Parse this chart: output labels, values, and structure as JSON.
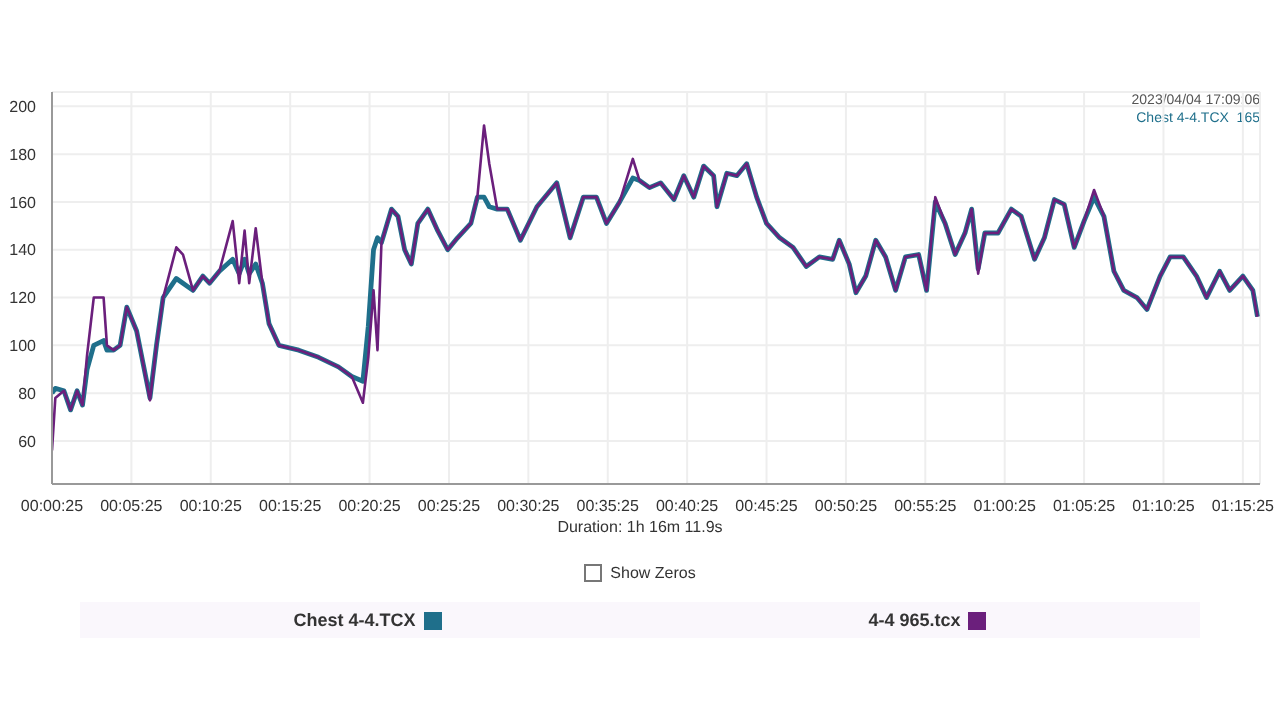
{
  "chart_data": {
    "type": "line",
    "xlabel": "Duration: 1h 16m 11.9s",
    "annotations": [
      "2023/04/04 17:09:06",
      "Chest 4-4.TCX  165",
      "Show Zeros"
    ],
    "x": [
      0.42,
      0.63,
      1.17,
      1.59,
      2.0,
      2.34,
      2.63,
      3.05,
      3.67,
      3.88,
      4.3,
      4.71,
      5.13,
      5.75,
      6.17,
      6.59,
      7.0,
      7.42,
      8.25,
      8.67,
      9.3,
      9.92,
      10.34,
      10.96,
      11.8,
      12.21,
      12.55,
      12.84,
      13.25,
      13.67,
      14.09,
      14.71,
      15.96,
      17.21,
      18.46,
      19.3,
      20.0,
      20.34,
      20.67,
      20.92,
      21.17,
      21.8,
      22.21,
      22.63,
      23.05,
      23.46,
      24.09,
      24.71,
      25.34,
      25.96,
      26.8,
      27.21,
      27.63,
      27.96,
      28.46,
      29.09,
      29.92,
      30.96,
      32.21,
      33.05,
      33.88,
      34.71,
      35.34,
      36.17,
      37.0,
      37.42,
      38.05,
      38.75,
      39.59,
      40.21,
      40.84,
      41.46,
      42.09,
      42.3,
      42.92,
      43.55,
      44.17,
      44.8,
      45.42,
      46.25,
      47.09,
      47.92,
      48.75,
      49.59,
      50.0,
      50.63,
      51.05,
      51.67,
      52.3,
      52.92,
      53.55,
      54.17,
      55.0,
      55.5,
      56.05,
      56.67,
      57.3,
      57.92,
      58.34,
      58.75,
      59.17,
      60.0,
      60.84,
      61.46,
      62.3,
      62.92,
      63.55,
      64.17,
      64.8,
      65.42,
      66.05,
      66.67,
      67.3,
      67.92,
      68.75,
      69.38,
      70.21,
      70.84,
      71.67,
      72.5,
      73.13,
      73.96,
      74.59,
      75.42,
      76.05,
      76.34
    ],
    "series": [
      {
        "name": "Chest 4-4.TCX",
        "color": "#1f6f8b",
        "values": [
          80,
          82,
          81,
          73,
          81,
          75,
          90,
          100,
          102,
          98,
          98,
          100,
          116,
          106,
          92,
          78,
          100,
          120,
          128,
          126,
          123,
          129,
          126,
          131,
          136,
          130,
          136,
          130,
          134,
          126,
          109,
          100,
          98,
          95,
          91,
          87,
          85,
          108,
          140,
          145,
          143,
          157,
          154,
          140,
          134,
          151,
          157,
          148,
          140,
          145,
          151,
          162,
          162,
          158,
          157,
          157,
          144,
          158,
          168,
          145,
          162,
          162,
          151,
          160,
          170,
          169,
          166,
          168,
          161,
          171,
          162,
          175,
          171,
          158,
          172,
          171,
          176,
          162,
          151,
          145,
          141,
          133,
          137,
          136,
          144,
          134,
          122,
          129,
          144,
          137,
          123,
          137,
          138,
          123,
          160,
          151,
          138,
          147,
          157,
          132,
          147,
          147,
          157,
          154,
          136,
          145,
          161,
          159,
          141,
          152,
          162,
          154,
          131,
          123,
          120,
          115,
          129,
          137,
          137,
          129,
          120,
          131,
          123,
          129,
          123,
          112
        ]
      },
      {
        "name": "4-4 965.tcx",
        "color": "#6b1f7c",
        "values": [
          56,
          78,
          81,
          73,
          81,
          75,
          96,
          120,
          120,
          100,
          98,
          100,
          116,
          106,
          92,
          77,
          100,
          120,
          141,
          138,
          123,
          129,
          126,
          131,
          152,
          126,
          148,
          126,
          149,
          126,
          109,
          100,
          98,
          95,
          91,
          87,
          76,
          95,
          123,
          98,
          143,
          157,
          154,
          140,
          134,
          151,
          157,
          148,
          140,
          145,
          151,
          162,
          192,
          176,
          157,
          157,
          144,
          158,
          168,
          145,
          162,
          162,
          151,
          160,
          178,
          169,
          166,
          168,
          161,
          171,
          162,
          175,
          171,
          158,
          172,
          171,
          176,
          162,
          151,
          145,
          141,
          133,
          137,
          136,
          144,
          134,
          122,
          129,
          144,
          137,
          123,
          137,
          138,
          123,
          162,
          151,
          138,
          147,
          157,
          130,
          147,
          147,
          157,
          154,
          136,
          145,
          161,
          159,
          141,
          152,
          165,
          154,
          131,
          123,
          120,
          115,
          129,
          137,
          137,
          129,
          120,
          131,
          123,
          129,
          123,
          112
        ]
      }
    ],
    "xlim": [
      0.42,
      76.5
    ],
    "xticks": [
      {
        "value": 0.42,
        "label": "00:00:25"
      },
      {
        "value": 5.42,
        "label": "00:05:25"
      },
      {
        "value": 10.42,
        "label": "00:10:25"
      },
      {
        "value": 15.42,
        "label": "00:15:25"
      },
      {
        "value": 20.42,
        "label": "00:20:25"
      },
      {
        "value": 25.42,
        "label": "00:25:25"
      },
      {
        "value": 30.42,
        "label": "00:30:25"
      },
      {
        "value": 35.42,
        "label": "00:35:25"
      },
      {
        "value": 40.42,
        "label": "00:40:25"
      },
      {
        "value": 45.42,
        "label": "00:45:25"
      },
      {
        "value": 50.42,
        "label": "00:50:25"
      },
      {
        "value": 55.42,
        "label": "00:55:25"
      },
      {
        "value": 60.42,
        "label": "01:00:25"
      },
      {
        "value": 65.42,
        "label": "01:05:25"
      },
      {
        "value": 70.42,
        "label": "01:10:25"
      },
      {
        "value": 75.42,
        "label": "01:15:25"
      }
    ],
    "ylim": [
      42,
      206
    ],
    "yticks": [
      60,
      80,
      100,
      120,
      140,
      160,
      180,
      200
    ],
    "grid": true,
    "legend": "bottom",
    "marker": "none",
    "line_style": "solid"
  }
}
